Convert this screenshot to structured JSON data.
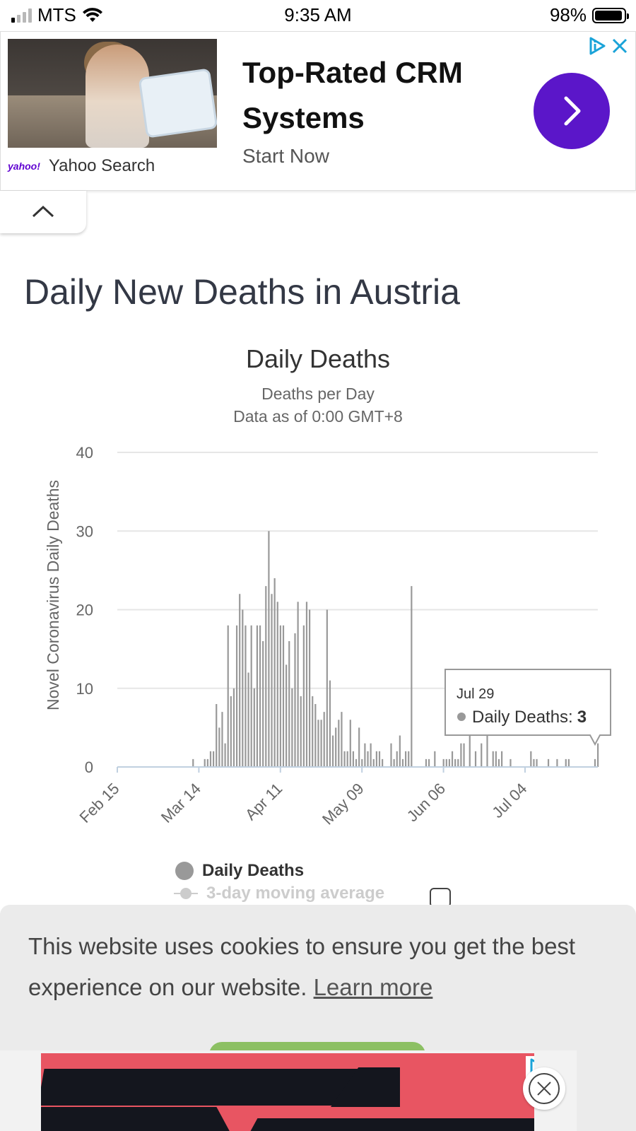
{
  "status_bar": {
    "carrier": "MTS",
    "time": "9:35 AM",
    "battery_percent": "98%",
    "signal_bars_active": 1,
    "signal_bars_total": 4,
    "battery_level": 0.98
  },
  "ad_top": {
    "title": "Top-Rated CRM Systems",
    "subtitle": "Start Now",
    "source_logo": "yahoo!",
    "source": "Yahoo Search",
    "arrow_color": "#5b16c9"
  },
  "page": {
    "title": "Daily New Deaths in Austria"
  },
  "chart_data": {
    "type": "bar",
    "title": "Daily Deaths",
    "subtitle_lines": [
      "Deaths per Day",
      "Data as of 0:00 GMT+8"
    ],
    "ylabel": "Novel Coronavirus Daily Deaths",
    "xlabel": "",
    "ylim": [
      0,
      40
    ],
    "yticks": [
      "0",
      "10",
      "20",
      "30",
      "40"
    ],
    "grid": true,
    "xtick_labels": [
      "Feb 15",
      "Mar 14",
      "Apr 11",
      "May 09",
      "Jun 06",
      "Jul 04"
    ],
    "x_start_date": "2020-02-15",
    "x_end_date": "2020-07-29",
    "bar_color": "#999999",
    "series": [
      {
        "name": "Daily Deaths",
        "values": [
          {
            "date": "2020-03-12",
            "value": 1
          },
          {
            "date": "2020-03-16",
            "value": 1
          },
          {
            "date": "2020-03-17",
            "value": 1
          },
          {
            "date": "2020-03-18",
            "value": 2
          },
          {
            "date": "2020-03-19",
            "value": 2
          },
          {
            "date": "2020-03-20",
            "value": 8
          },
          {
            "date": "2020-03-21",
            "value": 5
          },
          {
            "date": "2020-03-22",
            "value": 7
          },
          {
            "date": "2020-03-23",
            "value": 3
          },
          {
            "date": "2020-03-24",
            "value": 18
          },
          {
            "date": "2020-03-25",
            "value": 9
          },
          {
            "date": "2020-03-26",
            "value": 10
          },
          {
            "date": "2020-03-27",
            "value": 18
          },
          {
            "date": "2020-03-28",
            "value": 22
          },
          {
            "date": "2020-03-29",
            "value": 20
          },
          {
            "date": "2020-03-30",
            "value": 18
          },
          {
            "date": "2020-03-31",
            "value": 12
          },
          {
            "date": "2020-04-01",
            "value": 18
          },
          {
            "date": "2020-04-02",
            "value": 10
          },
          {
            "date": "2020-04-03",
            "value": 18
          },
          {
            "date": "2020-04-04",
            "value": 18
          },
          {
            "date": "2020-04-05",
            "value": 16
          },
          {
            "date": "2020-04-06",
            "value": 23
          },
          {
            "date": "2020-04-07",
            "value": 30
          },
          {
            "date": "2020-04-08",
            "value": 22
          },
          {
            "date": "2020-04-09",
            "value": 24
          },
          {
            "date": "2020-04-10",
            "value": 21
          },
          {
            "date": "2020-04-11",
            "value": 18
          },
          {
            "date": "2020-04-12",
            "value": 18
          },
          {
            "date": "2020-04-13",
            "value": 13
          },
          {
            "date": "2020-04-14",
            "value": 16
          },
          {
            "date": "2020-04-15",
            "value": 10
          },
          {
            "date": "2020-04-16",
            "value": 17
          },
          {
            "date": "2020-04-17",
            "value": 21
          },
          {
            "date": "2020-04-18",
            "value": 9
          },
          {
            "date": "2020-04-19",
            "value": 18
          },
          {
            "date": "2020-04-20",
            "value": 21
          },
          {
            "date": "2020-04-21",
            "value": 20
          },
          {
            "date": "2020-04-22",
            "value": 9
          },
          {
            "date": "2020-04-23",
            "value": 8
          },
          {
            "date": "2020-04-24",
            "value": 6
          },
          {
            "date": "2020-04-25",
            "value": 6
          },
          {
            "date": "2020-04-26",
            "value": 7
          },
          {
            "date": "2020-04-27",
            "value": 20
          },
          {
            "date": "2020-04-28",
            "value": 11
          },
          {
            "date": "2020-04-29",
            "value": 4
          },
          {
            "date": "2020-04-30",
            "value": 5
          },
          {
            "date": "2020-05-01",
            "value": 6
          },
          {
            "date": "2020-05-02",
            "value": 7
          },
          {
            "date": "2020-05-03",
            "value": 2
          },
          {
            "date": "2020-05-04",
            "value": 2
          },
          {
            "date": "2020-05-05",
            "value": 6
          },
          {
            "date": "2020-05-06",
            "value": 2
          },
          {
            "date": "2020-05-07",
            "value": 1
          },
          {
            "date": "2020-05-08",
            "value": 5
          },
          {
            "date": "2020-05-09",
            "value": 1
          },
          {
            "date": "2020-05-10",
            "value": 3
          },
          {
            "date": "2020-05-11",
            "value": 2
          },
          {
            "date": "2020-05-12",
            "value": 3
          },
          {
            "date": "2020-05-13",
            "value": 1
          },
          {
            "date": "2020-05-14",
            "value": 2
          },
          {
            "date": "2020-05-15",
            "value": 2
          },
          {
            "date": "2020-05-16",
            "value": 1
          },
          {
            "date": "2020-05-19",
            "value": 3
          },
          {
            "date": "2020-05-20",
            "value": 1
          },
          {
            "date": "2020-05-21",
            "value": 2
          },
          {
            "date": "2020-05-22",
            "value": 4
          },
          {
            "date": "2020-05-23",
            "value": 1
          },
          {
            "date": "2020-05-24",
            "value": 2
          },
          {
            "date": "2020-05-25",
            "value": 2
          },
          {
            "date": "2020-05-26",
            "value": 23
          },
          {
            "date": "2020-05-31",
            "value": 1
          },
          {
            "date": "2020-06-01",
            "value": 1
          },
          {
            "date": "2020-06-03",
            "value": 2
          },
          {
            "date": "2020-06-06",
            "value": 1
          },
          {
            "date": "2020-06-07",
            "value": 1
          },
          {
            "date": "2020-06-08",
            "value": 1
          },
          {
            "date": "2020-06-09",
            "value": 2
          },
          {
            "date": "2020-06-10",
            "value": 1
          },
          {
            "date": "2020-06-11",
            "value": 1
          },
          {
            "date": "2020-06-12",
            "value": 3
          },
          {
            "date": "2020-06-13",
            "value": 3
          },
          {
            "date": "2020-06-15",
            "value": 4
          },
          {
            "date": "2020-06-17",
            "value": 2
          },
          {
            "date": "2020-06-19",
            "value": 3
          },
          {
            "date": "2020-06-21",
            "value": 4
          },
          {
            "date": "2020-06-23",
            "value": 2
          },
          {
            "date": "2020-06-24",
            "value": 2
          },
          {
            "date": "2020-06-25",
            "value": 1
          },
          {
            "date": "2020-06-26",
            "value": 2
          },
          {
            "date": "2020-06-29",
            "value": 1
          },
          {
            "date": "2020-07-06",
            "value": 2
          },
          {
            "date": "2020-07-07",
            "value": 1
          },
          {
            "date": "2020-07-08",
            "value": 1
          },
          {
            "date": "2020-07-12",
            "value": 1
          },
          {
            "date": "2020-07-15",
            "value": 1
          },
          {
            "date": "2020-07-18",
            "value": 1
          },
          {
            "date": "2020-07-19",
            "value": 1
          },
          {
            "date": "2020-07-28",
            "value": 1
          },
          {
            "date": "2020-07-29",
            "value": 3
          }
        ]
      },
      {
        "name": "3-day moving average",
        "visible": false
      }
    ],
    "tooltip": {
      "date": "Jul 29",
      "label": "Daily Deaths:",
      "value": "3"
    },
    "legend_placement": "bottom"
  },
  "legend": {
    "daily_deaths": "Daily Deaths",
    "moving_average": "3-day moving average"
  },
  "cookie_banner": {
    "message": "This website uses cookies to ensure you get the best experience on our website.",
    "link": "Learn more",
    "button_color": "#8cc063"
  },
  "ad_bottom": {
    "background_color": "#e85562"
  }
}
